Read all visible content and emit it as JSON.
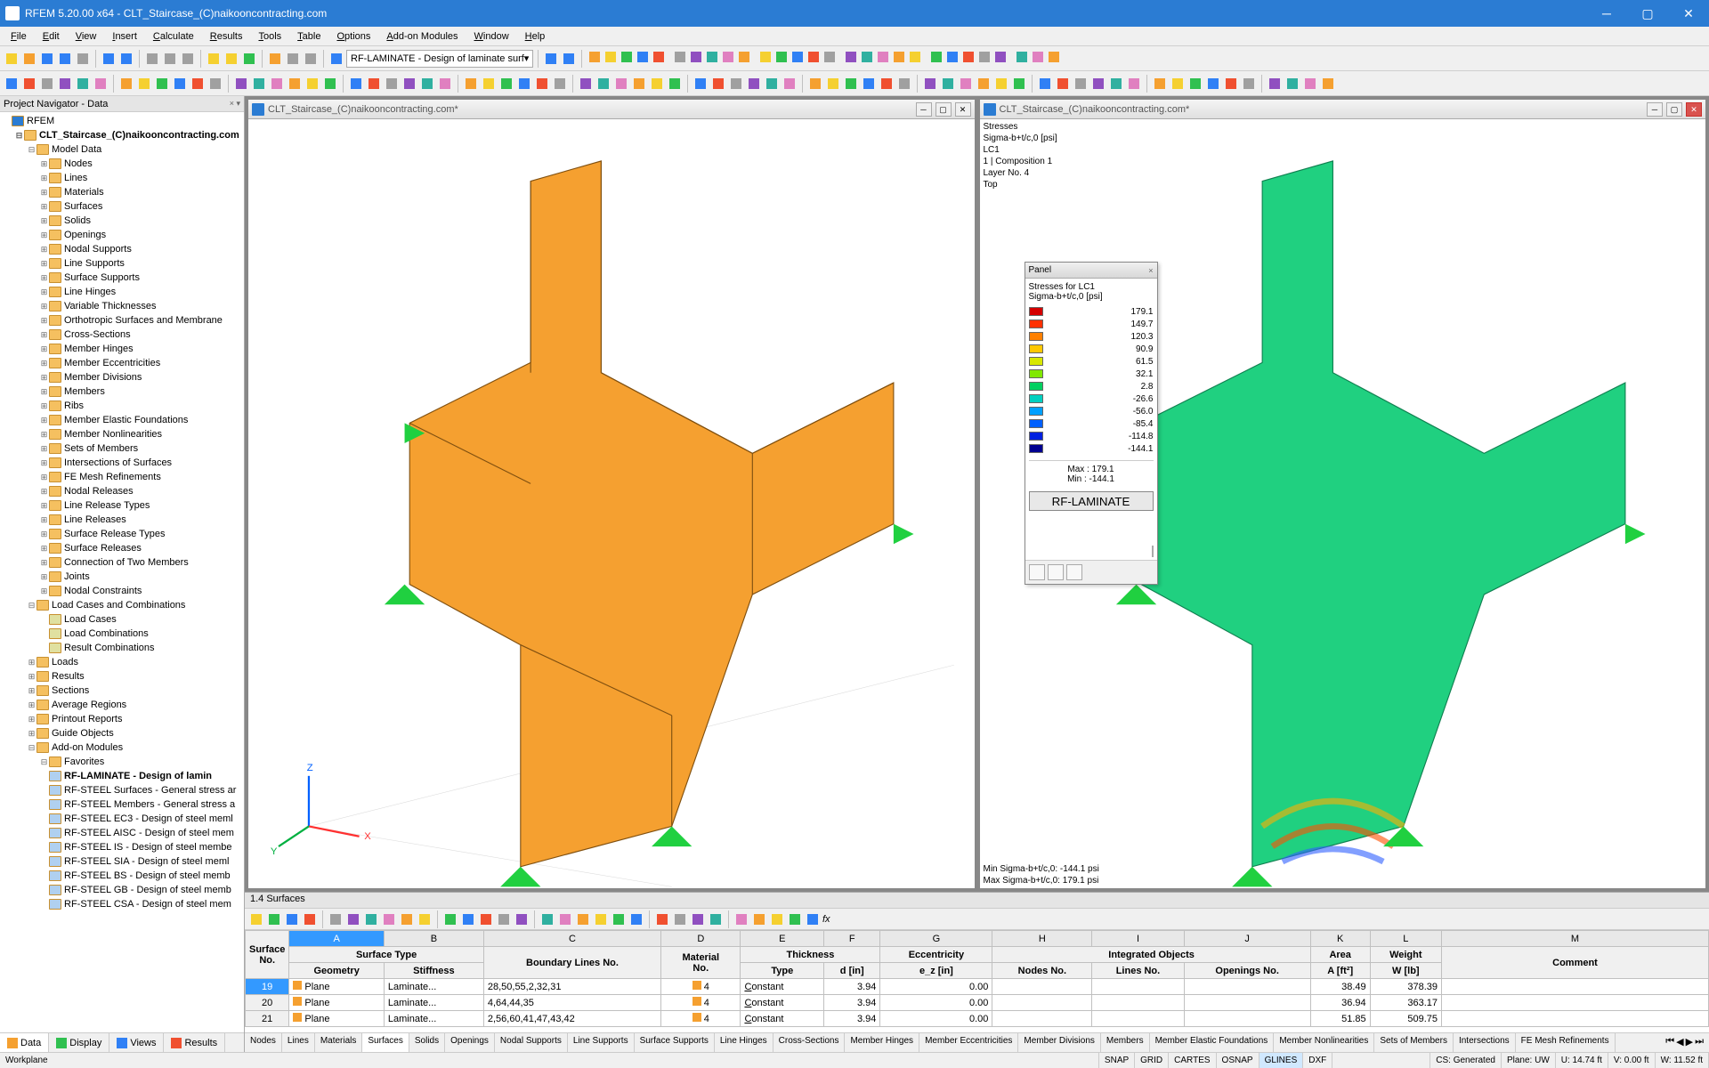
{
  "title": "RFEM 5.20.00 x64 - CLT_Staircase_(C)naikooncontracting.com",
  "menu": [
    "File",
    "Edit",
    "View",
    "Insert",
    "Calculate",
    "Results",
    "Tools",
    "Table",
    "Options",
    "Add-on Modules",
    "Window",
    "Help"
  ],
  "toolbar_dropdown": "RF-LAMINATE - Design of laminate surf",
  "navigator": {
    "title": "Project Navigator - Data",
    "root": "RFEM",
    "project": "CLT_Staircase_(C)naikooncontracting.com",
    "model_data": "Model Data",
    "items": [
      "Nodes",
      "Lines",
      "Materials",
      "Surfaces",
      "Solids",
      "Openings",
      "Nodal Supports",
      "Line Supports",
      "Surface Supports",
      "Line Hinges",
      "Variable Thicknesses",
      "Orthotropic Surfaces and Membrane",
      "Cross-Sections",
      "Member Hinges",
      "Member Eccentricities",
      "Member Divisions",
      "Members",
      "Ribs",
      "Member Elastic Foundations",
      "Member Nonlinearities",
      "Sets of Members",
      "Intersections of Surfaces",
      "FE Mesh Refinements",
      "Nodal Releases",
      "Line Release Types",
      "Line Releases",
      "Surface Release Types",
      "Surface Releases",
      "Connection of Two Members",
      "Joints",
      "Nodal Constraints"
    ],
    "load_cases_group": "Load Cases and Combinations",
    "load_cases_items": [
      "Load Cases",
      "Load Combinations",
      "Result Combinations"
    ],
    "extra": [
      "Loads",
      "Results",
      "Sections",
      "Average Regions",
      "Printout Reports",
      "Guide Objects"
    ],
    "addon": "Add-on Modules",
    "favorites": "Favorites",
    "fav_items": [
      "RF-LAMINATE - Design of lamin",
      "RF-STEEL Surfaces - General stress ar",
      "RF-STEEL Members - General stress a",
      "RF-STEEL EC3 - Design of steel meml",
      "RF-STEEL AISC - Design of steel mem",
      "RF-STEEL IS - Design of steel membe",
      "RF-STEEL SIA - Design of steel meml",
      "RF-STEEL BS - Design of steel memb",
      "RF-STEEL GB - Design of steel memb",
      "RF-STEEL CSA - Design of steel mem"
    ],
    "tabs": [
      "Data",
      "Display",
      "Views",
      "Results"
    ]
  },
  "view1": {
    "title": "CLT_Staircase_(C)naikooncontracting.com*",
    "color": "#f5a030"
  },
  "view2": {
    "title": "CLT_Staircase_(C)naikooncontracting.com*",
    "header_lines": [
      "Stresses",
      "Sigma-b+t/c,0 [psi]",
      "LC1",
      "1 | Composition 1",
      "Layer No. 4",
      "Top"
    ],
    "footer_lines": [
      "Min Sigma-b+t/c,0: -144.1 psi",
      "Max Sigma-b+t/c,0: 179.1 psi"
    ]
  },
  "panel": {
    "title": "Panel",
    "sub1": "Stresses for LC1",
    "sub2": "Sigma-b+t/c,0 [psi]",
    "legend": [
      {
        "c": "#d40000",
        "v": "179.1"
      },
      {
        "c": "#ff3000",
        "v": "149.7"
      },
      {
        "c": "#ff8000",
        "v": "120.3"
      },
      {
        "c": "#ffc800",
        "v": "90.9"
      },
      {
        "c": "#d8e800",
        "v": "61.5"
      },
      {
        "c": "#80e800",
        "v": "32.1"
      },
      {
        "c": "#00d060",
        "v": "2.8"
      },
      {
        "c": "#00d0c0",
        "v": "-26.6"
      },
      {
        "c": "#00a0ff",
        "v": "-56.0"
      },
      {
        "c": "#0060ff",
        "v": "-85.4"
      },
      {
        "c": "#0020e0",
        "v": "-114.8"
      },
      {
        "c": "#000090",
        "v": "-144.1"
      }
    ],
    "max": "Max :   179.1",
    "min": "Min :  -144.1",
    "button": "RF-LAMINATE"
  },
  "bottom": {
    "title": "1.4 Surfaces",
    "col_letters": [
      "A",
      "B",
      "C",
      "D",
      "E",
      "F",
      "G",
      "H",
      "I",
      "J",
      "K",
      "L",
      "M"
    ],
    "group_headers": {
      "surface_no": "Surface\nNo.",
      "surface_type": "Surface Type",
      "boundary": "Boundary Lines No.",
      "material": "Material\nNo.",
      "thickness": "Thickness",
      "eccentricity": "Eccentricity",
      "integrated": "Integrated Objects",
      "area": "Area",
      "weight": "Weight",
      "comment": "Comment"
    },
    "sub_headers": {
      "geometry": "Geometry",
      "stiffness": "Stiffness",
      "type": "Type",
      "d": "d [in]",
      "ez": "e_z [in]",
      "nodes": "Nodes No.",
      "lines": "Lines No.",
      "openings": "Openings No.",
      "area_u": "A [ft²]",
      "weight_u": "W [lb]"
    },
    "rows": [
      {
        "no": "19",
        "geom": "Plane",
        "stiff": "Laminate...",
        "bound": "28,50,55,2,32,31",
        "mat": "4",
        "type": "Constant",
        "d": "3.94",
        "ez": "0.00",
        "nodes": "",
        "lines": "",
        "open": "",
        "area": "38.49",
        "weight": "378.39",
        "comment": ""
      },
      {
        "no": "20",
        "geom": "Plane",
        "stiff": "Laminate...",
        "bound": "4,64,44,35",
        "mat": "4",
        "type": "Constant",
        "d": "3.94",
        "ez": "0.00",
        "nodes": "",
        "lines": "",
        "open": "",
        "area": "36.94",
        "weight": "363.17",
        "comment": ""
      },
      {
        "no": "21",
        "geom": "Plane",
        "stiff": "Laminate...",
        "bound": "2,56,60,41,47,43,42",
        "mat": "4",
        "type": "Constant",
        "d": "3.94",
        "ez": "0.00",
        "nodes": "",
        "lines": "",
        "open": "",
        "area": "51.85",
        "weight": "509.75",
        "comment": ""
      }
    ],
    "tabs": [
      "Nodes",
      "Lines",
      "Materials",
      "Surfaces",
      "Solids",
      "Openings",
      "Nodal Supports",
      "Line Supports",
      "Surface Supports",
      "Line Hinges",
      "Cross-Sections",
      "Member Hinges",
      "Member Eccentricities",
      "Member Divisions",
      "Members",
      "Member Elastic Foundations",
      "Member Nonlinearities",
      "Sets of Members",
      "Intersections",
      "FE Mesh Refinements"
    ]
  },
  "status": {
    "left": "Workplane",
    "snap": "SNAP",
    "grid": "GRID",
    "cartes": "CARTES",
    "osnap": "OSNAP",
    "glines": "GLINES",
    "dxf": "DXF",
    "cs": "CS: Generated",
    "plane": "Plane: UW",
    "u": "U:  14.74 ft",
    "v": "V:  0.00 ft",
    "w": "W:  11.52 ft"
  }
}
